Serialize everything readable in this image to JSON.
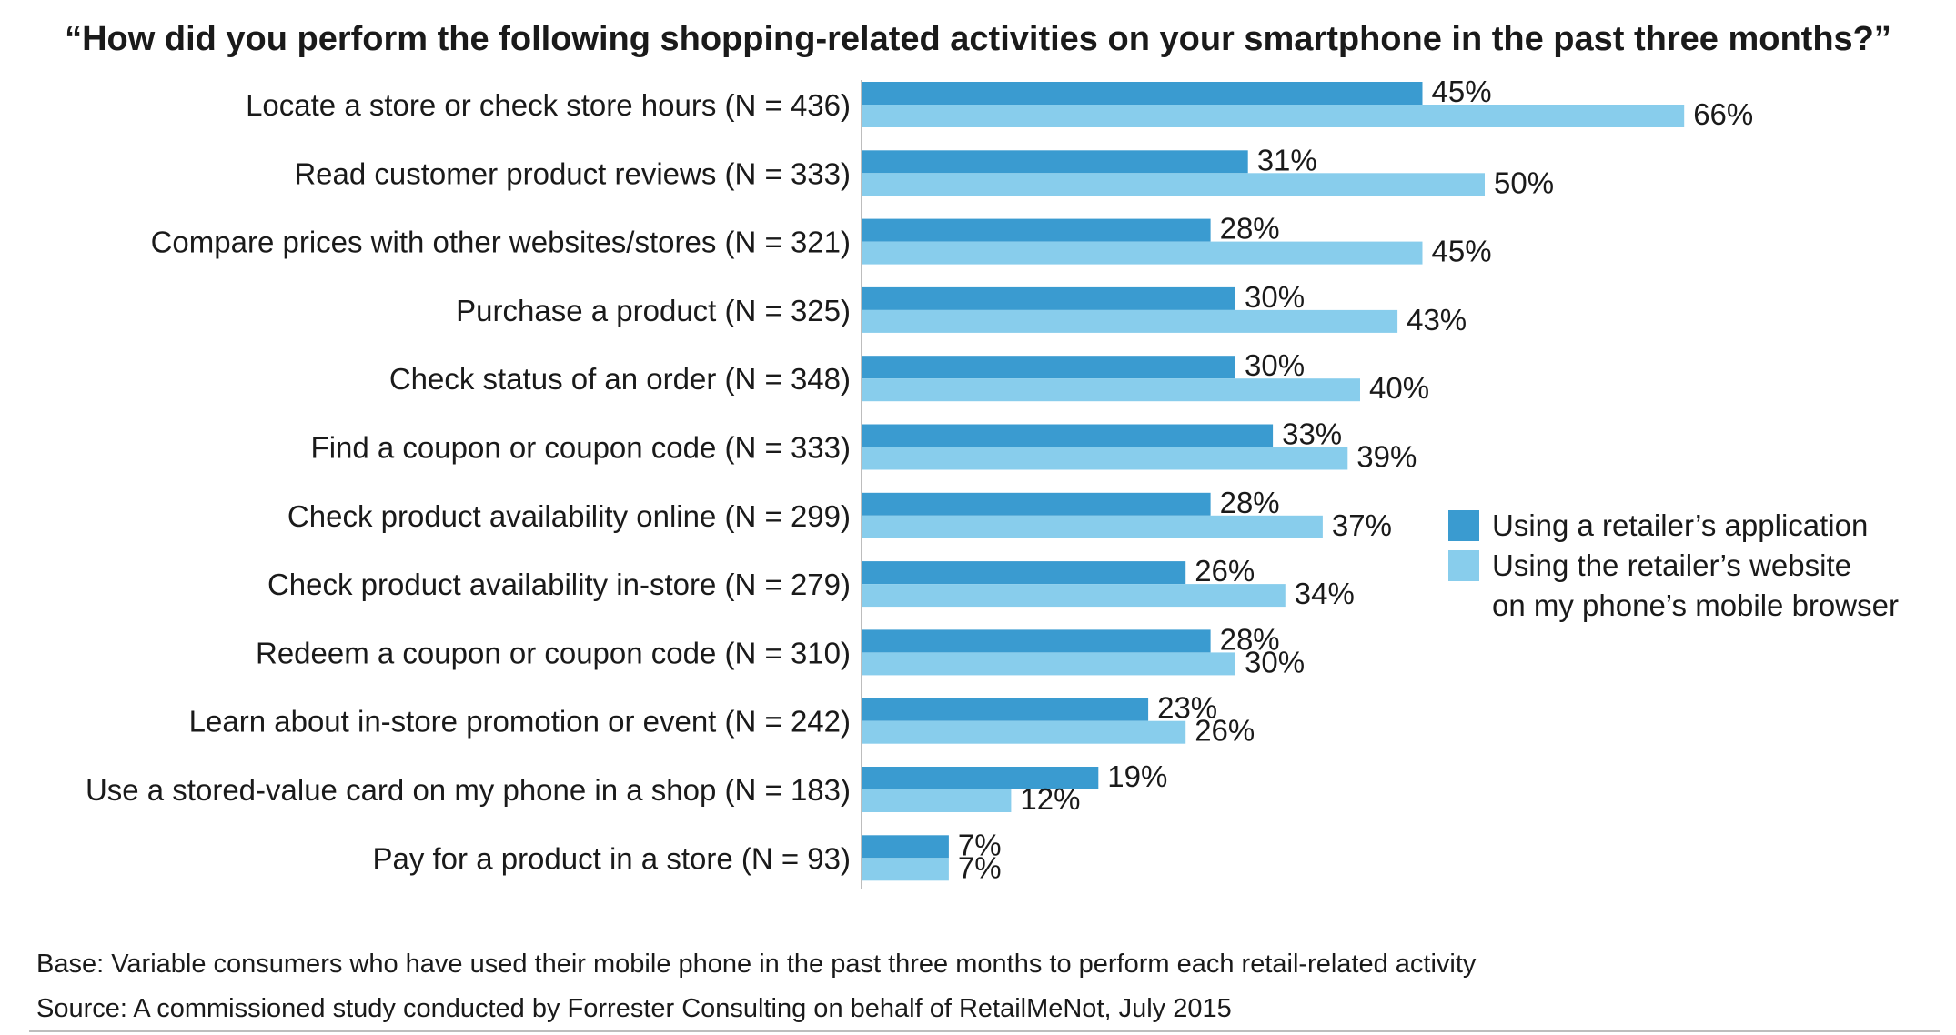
{
  "chart_data": {
    "type": "bar",
    "orientation": "horizontal",
    "title": "“How did you perform the following shopping-related activities on your smartphone in the past three months?”",
    "xlabel": "",
    "ylabel": "",
    "xlim": [
      0,
      100
    ],
    "grid": false,
    "legend_position": "right",
    "categories": [
      "Locate a store or check store hours (N = 436)",
      "Read customer product reviews (N = 333)",
      "Compare prices with other websites/stores (N = 321)",
      "Purchase a product (N = 325)",
      "Check status of an order (N = 348)",
      "Find a coupon or coupon code (N = 333)",
      "Check product availability online (N = 299)",
      "Check product availability in-store (N = 279)",
      "Redeem a coupon or coupon code (N = 310)",
      "Learn about in-store promotion or event (N = 242)",
      "Use a stored-value card on my phone in a shop (N = 183)",
      "Pay for a product in a store (N = 93)"
    ],
    "series": [
      {
        "name": "Using a retailer’s application",
        "color": "#3a9bd0",
        "values": [
          45,
          31,
          28,
          30,
          30,
          33,
          28,
          26,
          28,
          23,
          19,
          7
        ],
        "labels": [
          "45%",
          "31%",
          "28%",
          "30%",
          "30%",
          "33%",
          "28%",
          "26%",
          "28%",
          "23%",
          "19%",
          "7%"
        ]
      },
      {
        "name": "Using the retailer’s website\non my phone’s mobile browser",
        "color": "#88cdec",
        "values": [
          66,
          50,
          45,
          43,
          40,
          39,
          37,
          34,
          30,
          26,
          12,
          7
        ],
        "labels": [
          "66%",
          "50%",
          "45%",
          "43%",
          "40%",
          "39%",
          "37%",
          "34%",
          "30%",
          "26%",
          "12%",
          "7%"
        ]
      }
    ]
  },
  "footnotes": {
    "base": "Base: Variable consumers who have used their mobile phone in the past three months to perform each retail-related activity",
    "source": "Source: A commissioned study conducted by Forrester Consulting on behalf of RetailMeNot, July 2015"
  }
}
